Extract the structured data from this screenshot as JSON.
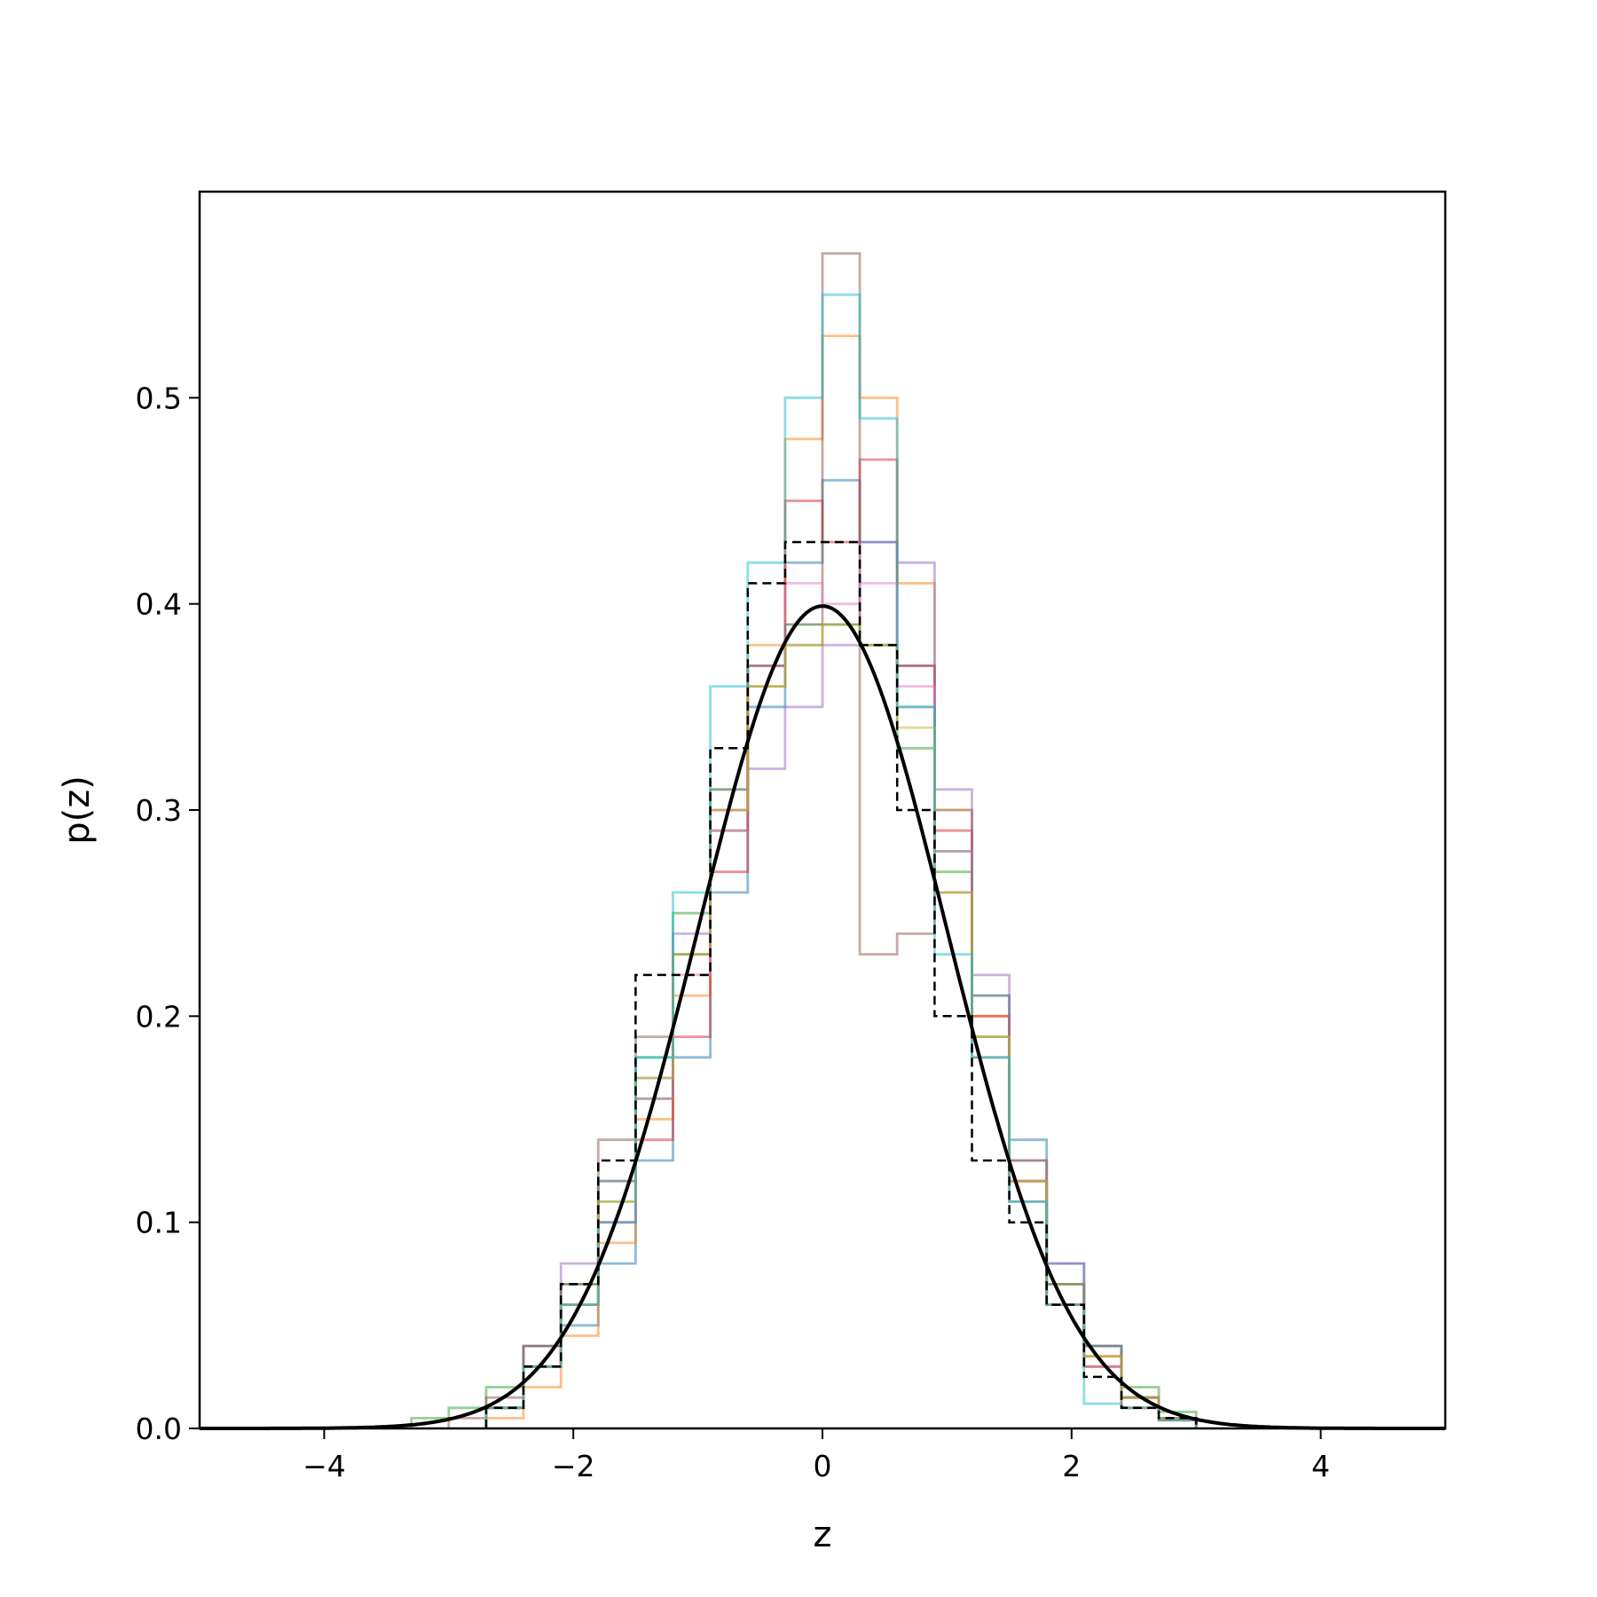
{
  "chart_data": {
    "type": "histogram",
    "xlabel": "z",
    "ylabel": "p(z)",
    "xlim": [
      -5,
      5
    ],
    "ylim": [
      0,
      0.6
    ],
    "grid": false,
    "legend": false,
    "x_ticks": [
      -4,
      -2,
      0,
      2,
      4
    ],
    "x_tick_labels": [
      "−4",
      "−2",
      "0",
      "2",
      "4"
    ],
    "y_ticks": [
      0.0,
      0.1,
      0.2,
      0.3,
      0.4,
      0.5
    ],
    "y_tick_labels": [
      "0.0",
      "0.1",
      "0.2",
      "0.3",
      "0.4",
      "0.5"
    ],
    "reference_curve": {
      "style": "solid",
      "color": "#000000",
      "mean": 0,
      "std": 1
    },
    "series": [
      {
        "color": "#1f77b4",
        "style": "step",
        "bins": [
          [
            -2.7,
            0.01
          ],
          [
            -2.4,
            0.03
          ],
          [
            -2.1,
            0.05
          ],
          [
            -1.8,
            0.08
          ],
          [
            -1.5,
            0.13
          ],
          [
            -1.2,
            0.18
          ],
          [
            -0.9,
            0.26
          ],
          [
            -0.6,
            0.35
          ],
          [
            -0.3,
            0.42
          ],
          [
            0.0,
            0.46
          ],
          [
            0.3,
            0.43
          ],
          [
            0.6,
            0.37
          ],
          [
            0.9,
            0.3
          ],
          [
            1.2,
            0.21
          ],
          [
            1.5,
            0.14
          ],
          [
            1.8,
            0.08
          ],
          [
            2.1,
            0.04
          ],
          [
            2.4,
            0.015
          ],
          [
            2.7,
            0.005
          ],
          [
            3.0,
            0.0
          ]
        ]
      },
      {
        "color": "#ff7f0e",
        "style": "step",
        "bins": [
          [
            -2.7,
            0.005
          ],
          [
            -2.4,
            0.02
          ],
          [
            -2.1,
            0.045
          ],
          [
            -1.8,
            0.09
          ],
          [
            -1.5,
            0.15
          ],
          [
            -1.2,
            0.21
          ],
          [
            -0.9,
            0.29
          ],
          [
            -0.6,
            0.38
          ],
          [
            -0.3,
            0.48
          ],
          [
            0.0,
            0.53
          ],
          [
            0.3,
            0.5
          ],
          [
            0.6,
            0.41
          ],
          [
            0.9,
            0.3
          ],
          [
            1.2,
            0.2
          ],
          [
            1.5,
            0.13
          ],
          [
            1.8,
            0.07
          ],
          [
            2.1,
            0.03
          ],
          [
            2.4,
            0.01
          ],
          [
            2.7,
            0.004
          ],
          [
            3.0,
            0.0
          ]
        ]
      },
      {
        "color": "#2ca02c",
        "style": "step",
        "bins": [
          [
            -3.3,
            0.005
          ],
          [
            -3.0,
            0.01
          ],
          [
            -2.7,
            0.02
          ],
          [
            -2.4,
            0.04
          ],
          [
            -2.1,
            0.07
          ],
          [
            -1.8,
            0.12
          ],
          [
            -1.5,
            0.18
          ],
          [
            -1.2,
            0.25
          ],
          [
            -0.9,
            0.31
          ],
          [
            -0.6,
            0.37
          ],
          [
            -0.3,
            0.39
          ],
          [
            0.0,
            0.39
          ],
          [
            0.3,
            0.38
          ],
          [
            0.6,
            0.33
          ],
          [
            0.9,
            0.27
          ],
          [
            1.2,
            0.19
          ],
          [
            1.5,
            0.12
          ],
          [
            1.8,
            0.07
          ],
          [
            2.1,
            0.04
          ],
          [
            2.4,
            0.02
          ],
          [
            2.7,
            0.008
          ],
          [
            3.0,
            0.0
          ]
        ]
      },
      {
        "color": "#d62728",
        "style": "step",
        "bins": [
          [
            -2.7,
            0.01
          ],
          [
            -2.4,
            0.03
          ],
          [
            -2.1,
            0.06
          ],
          [
            -1.8,
            0.1
          ],
          [
            -1.5,
            0.14
          ],
          [
            -1.2,
            0.19
          ],
          [
            -0.9,
            0.27
          ],
          [
            -0.6,
            0.37
          ],
          [
            -0.3,
            0.45
          ],
          [
            0.0,
            0.43
          ],
          [
            0.3,
            0.47
          ],
          [
            0.6,
            0.37
          ],
          [
            0.9,
            0.29
          ],
          [
            1.2,
            0.2
          ],
          [
            1.5,
            0.12
          ],
          [
            1.8,
            0.06
          ],
          [
            2.1,
            0.035
          ],
          [
            2.4,
            0.015
          ],
          [
            2.7,
            0.005
          ],
          [
            3.0,
            0.0
          ]
        ]
      },
      {
        "color": "#9467bd",
        "style": "step",
        "bins": [
          [
            -2.7,
            0.01
          ],
          [
            -2.4,
            0.04
          ],
          [
            -2.1,
            0.08
          ],
          [
            -1.8,
            0.12
          ],
          [
            -1.5,
            0.17
          ],
          [
            -1.2,
            0.24
          ],
          [
            -0.9,
            0.29
          ],
          [
            -0.6,
            0.32
          ],
          [
            -0.3,
            0.35
          ],
          [
            0.0,
            0.38
          ],
          [
            0.3,
            0.43
          ],
          [
            0.6,
            0.42
          ],
          [
            0.9,
            0.31
          ],
          [
            1.2,
            0.22
          ],
          [
            1.5,
            0.13
          ],
          [
            1.8,
            0.08
          ],
          [
            2.1,
            0.04
          ],
          [
            2.4,
            0.015
          ],
          [
            2.7,
            0.005
          ],
          [
            3.0,
            0.0
          ]
        ]
      },
      {
        "color": "#8c564b",
        "style": "step",
        "bins": [
          [
            -3.0,
            0.005
          ],
          [
            -2.7,
            0.015
          ],
          [
            -2.4,
            0.04
          ],
          [
            -2.1,
            0.07
          ],
          [
            -1.8,
            0.14
          ],
          [
            -1.5,
            0.19
          ],
          [
            -1.2,
            0.23
          ],
          [
            -0.9,
            0.3
          ],
          [
            -0.6,
            0.36
          ],
          [
            -0.3,
            0.38
          ],
          [
            0.0,
            0.57
          ],
          [
            0.3,
            0.23
          ],
          [
            0.6,
            0.24
          ],
          [
            0.9,
            0.26
          ],
          [
            1.2,
            0.18
          ],
          [
            1.5,
            0.11
          ],
          [
            1.8,
            0.06
          ],
          [
            2.1,
            0.03
          ],
          [
            2.4,
            0.01
          ],
          [
            2.7,
            0.004
          ],
          [
            3.0,
            0.0
          ]
        ]
      },
      {
        "color": "#e377c2",
        "style": "step",
        "bins": [
          [
            -2.7,
            0.01
          ],
          [
            -2.4,
            0.03
          ],
          [
            -2.1,
            0.06
          ],
          [
            -1.8,
            0.1
          ],
          [
            -1.5,
            0.16
          ],
          [
            -1.2,
            0.22
          ],
          [
            -0.9,
            0.3
          ],
          [
            -0.6,
            0.37
          ],
          [
            -0.3,
            0.41
          ],
          [
            0.0,
            0.4
          ],
          [
            0.3,
            0.41
          ],
          [
            0.6,
            0.36
          ],
          [
            0.9,
            0.28
          ],
          [
            1.2,
            0.19
          ],
          [
            1.5,
            0.12
          ],
          [
            1.8,
            0.06
          ],
          [
            2.1,
            0.03
          ],
          [
            2.4,
            0.015
          ],
          [
            2.7,
            0.005
          ],
          [
            3.0,
            0.0
          ]
        ]
      },
      {
        "color": "#7f7f7f",
        "style": "step",
        "bins": [
          [
            -2.7,
            0.01
          ],
          [
            -2.4,
            0.03
          ],
          [
            -2.1,
            0.06
          ],
          [
            -1.8,
            0.11
          ],
          [
            -1.5,
            0.16
          ],
          [
            -1.2,
            0.23
          ],
          [
            -0.9,
            0.31
          ],
          [
            -0.6,
            0.37
          ],
          [
            -0.3,
            0.39
          ],
          [
            0.0,
            0.39
          ],
          [
            0.3,
            0.38
          ],
          [
            0.6,
            0.35
          ],
          [
            0.9,
            0.28
          ],
          [
            1.2,
            0.21
          ],
          [
            1.5,
            0.13
          ],
          [
            1.8,
            0.07
          ],
          [
            2.1,
            0.04
          ],
          [
            2.4,
            0.015
          ],
          [
            2.7,
            0.005
          ],
          [
            3.0,
            0.0
          ]
        ]
      },
      {
        "color": "#bcbd22",
        "style": "step",
        "bins": [
          [
            -2.7,
            0.01
          ],
          [
            -2.4,
            0.03
          ],
          [
            -2.1,
            0.06
          ],
          [
            -1.8,
            0.11
          ],
          [
            -1.5,
            0.17
          ],
          [
            -1.2,
            0.23
          ],
          [
            -0.9,
            0.3
          ],
          [
            -0.6,
            0.36
          ],
          [
            -0.3,
            0.38
          ],
          [
            0.0,
            0.39
          ],
          [
            0.3,
            0.38
          ],
          [
            0.6,
            0.34
          ],
          [
            0.9,
            0.26
          ],
          [
            1.2,
            0.19
          ],
          [
            1.5,
            0.12
          ],
          [
            1.8,
            0.06
          ],
          [
            2.1,
            0.035
          ],
          [
            2.4,
            0.015
          ],
          [
            2.7,
            0.005
          ],
          [
            3.0,
            0.0
          ]
        ]
      },
      {
        "color": "#17becf",
        "style": "step",
        "bins": [
          [
            -2.7,
            0.01
          ],
          [
            -2.4,
            0.03
          ],
          [
            -2.1,
            0.06
          ],
          [
            -1.8,
            0.1
          ],
          [
            -1.5,
            0.18
          ],
          [
            -1.2,
            0.26
          ],
          [
            -0.9,
            0.36
          ],
          [
            -0.6,
            0.42
          ],
          [
            -0.3,
            0.5
          ],
          [
            0.0,
            0.55
          ],
          [
            0.3,
            0.49
          ],
          [
            0.6,
            0.35
          ],
          [
            0.9,
            0.23
          ],
          [
            1.2,
            0.18
          ],
          [
            1.5,
            0.11
          ],
          [
            1.8,
            0.06
          ],
          [
            2.1,
            0.012
          ],
          [
            2.4,
            0.01
          ],
          [
            2.7,
            0.004
          ],
          [
            3.0,
            0.0
          ]
        ]
      },
      {
        "color": "#000000",
        "style": "dashed",
        "bins": [
          [
            -2.7,
            0.01
          ],
          [
            -2.4,
            0.03
          ],
          [
            -2.1,
            0.07
          ],
          [
            -1.8,
            0.13
          ],
          [
            -1.5,
            0.22
          ],
          [
            -1.2,
            0.22
          ],
          [
            -0.9,
            0.33
          ],
          [
            -0.6,
            0.41
          ],
          [
            -0.3,
            0.43
          ],
          [
            0.0,
            0.43
          ],
          [
            0.3,
            0.38
          ],
          [
            0.6,
            0.3
          ],
          [
            0.9,
            0.2
          ],
          [
            1.2,
            0.13
          ],
          [
            1.5,
            0.1
          ],
          [
            1.8,
            0.06
          ],
          [
            2.1,
            0.025
          ],
          [
            2.4,
            0.01
          ],
          [
            2.7,
            0.005
          ],
          [
            3.0,
            0.0
          ]
        ]
      }
    ]
  }
}
